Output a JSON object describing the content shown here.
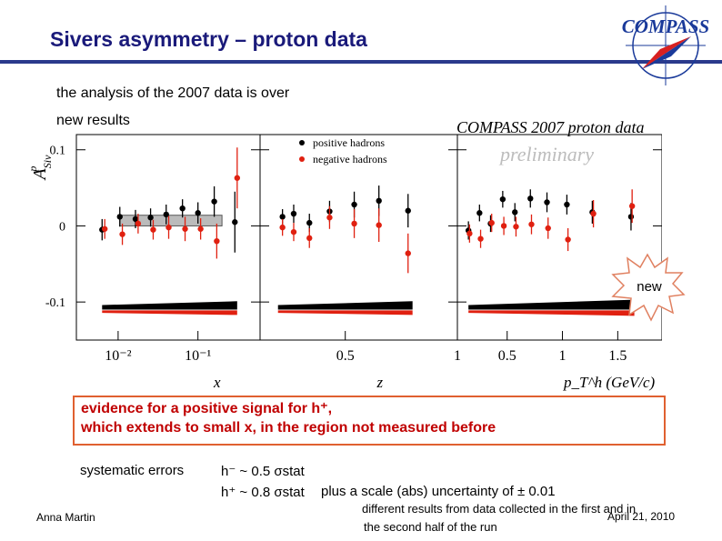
{
  "slide": {
    "title": "Sivers asymmetry – proton data",
    "line1": "the analysis of the 2007 data is over",
    "line2": "new results",
    "logo_text": "COMPASS",
    "evidence_line1": "evidence for a positive signal for h⁺,",
    "evidence_line2": "which extends to small x, in the region not measured before",
    "sys_label": "systematic errors",
    "sys_hminus": "h⁻ ~ 0.5 σstat",
    "sys_hplus": "h⁺ ~ 0.8 σstat",
    "sys_scale": "plus a scale (abs) uncertainty of ± 0.01",
    "note_line1": "different results from data collected in the first and in",
    "note_line2": "the second half of the run",
    "author": "Anna Martin",
    "date": "April 21, 2010",
    "badge": "new",
    "colors": {
      "title": "#1a1a7a",
      "rule": "#2a3a8c",
      "positive": "#000000",
      "negative": "#e02010",
      "evidence": "#c00000"
    }
  },
  "chart_data": {
    "type": "scatter",
    "title": "COMPASS 2007 proton data",
    "watermark": "preliminary",
    "ylabel": "A^p_Siv",
    "ylim": [
      -0.15,
      0.12
    ],
    "yticks": [
      {
        "v": 0.1,
        "label": "0.1"
      },
      {
        "v": 0,
        "label": "0"
      },
      {
        "v": -0.1,
        "label": "-0.1"
      }
    ],
    "legend": [
      "positive hadrons",
      "negative hadrons"
    ],
    "panels": [
      {
        "xlabel": "x",
        "scale": "log",
        "xlim": [
          0.003,
          0.6
        ],
        "xticks": [
          {
            "v": 0.01,
            "label": "10⁻²"
          },
          {
            "v": 0.1,
            "label": "10⁻¹"
          }
        ],
        "positive": [
          {
            "x": 0.0063,
            "y": -0.005,
            "e": 0.014
          },
          {
            "x": 0.0105,
            "y": 0.012,
            "e": 0.013
          },
          {
            "x": 0.0165,
            "y": 0.009,
            "e": 0.012
          },
          {
            "x": 0.0255,
            "y": 0.011,
            "e": 0.012
          },
          {
            "x": 0.04,
            "y": 0.015,
            "e": 0.013
          },
          {
            "x": 0.064,
            "y": 0.023,
            "e": 0.012
          },
          {
            "x": 0.1,
            "y": 0.017,
            "e": 0.014
          },
          {
            "x": 0.16,
            "y": 0.032,
            "e": 0.02
          },
          {
            "x": 0.29,
            "y": 0.005,
            "e": 0.04
          }
        ],
        "negative": [
          {
            "x": 0.0068,
            "y": -0.004,
            "e": 0.013
          },
          {
            "x": 0.0113,
            "y": -0.011,
            "e": 0.014
          },
          {
            "x": 0.0178,
            "y": 0.003,
            "e": 0.013
          },
          {
            "x": 0.0275,
            "y": -0.005,
            "e": 0.013
          },
          {
            "x": 0.043,
            "y": -0.002,
            "e": 0.015
          },
          {
            "x": 0.069,
            "y": -0.004,
            "e": 0.016
          },
          {
            "x": 0.108,
            "y": -0.004,
            "e": 0.014
          },
          {
            "x": 0.172,
            "y": -0.02,
            "e": 0.023
          },
          {
            "x": 0.31,
            "y": 0.063,
            "e": 0.04
          }
        ],
        "sys_band": {
          "from": 0.0063,
          "to": 0.31,
          "start": 0.006,
          "end": 0.011
        },
        "shade": {
          "from": 0.0105,
          "to": 0.2,
          "lo": 0.0,
          "hi": 0.014
        }
      },
      {
        "xlabel": "z",
        "scale": "linear",
        "xlim": [
          0.12,
          1.0
        ],
        "xticks": [
          {
            "v": 0.5,
            "label": "0.5"
          },
          {
            "v": 1,
            "label": "1"
          }
        ],
        "positive": [
          {
            "x": 0.22,
            "y": 0.012,
            "e": 0.01
          },
          {
            "x": 0.27,
            "y": 0.016,
            "e": 0.012
          },
          {
            "x": 0.34,
            "y": 0.004,
            "e": 0.012
          },
          {
            "x": 0.43,
            "y": 0.019,
            "e": 0.014
          },
          {
            "x": 0.54,
            "y": 0.028,
            "e": 0.017
          },
          {
            "x": 0.65,
            "y": 0.033,
            "e": 0.02
          },
          {
            "x": 0.78,
            "y": 0.02,
            "e": 0.022
          }
        ],
        "negative": [
          {
            "x": 0.22,
            "y": -0.002,
            "e": 0.011
          },
          {
            "x": 0.27,
            "y": -0.008,
            "e": 0.012
          },
          {
            "x": 0.34,
            "y": -0.016,
            "e": 0.013
          },
          {
            "x": 0.43,
            "y": 0.011,
            "e": 0.015
          },
          {
            "x": 0.54,
            "y": 0.003,
            "e": 0.019
          },
          {
            "x": 0.65,
            "y": 0.001,
            "e": 0.022
          },
          {
            "x": 0.78,
            "y": -0.036,
            "e": 0.026
          }
        ],
        "sys_band": {
          "from": 0.2,
          "to": 0.8,
          "start": 0.006,
          "end": 0.011
        }
      },
      {
        "xlabel": "p_T^h (GeV/c)",
        "scale": "linear",
        "xlim": [
          0.05,
          1.9
        ],
        "xticks": [
          {
            "v": 0.5,
            "label": "0.5"
          },
          {
            "v": 1,
            "label": "1"
          },
          {
            "v": 1.5,
            "label": "1.5"
          }
        ],
        "positive": [
          {
            "x": 0.15,
            "y": -0.006,
            "e": 0.012
          },
          {
            "x": 0.25,
            "y": 0.017,
            "e": 0.011
          },
          {
            "x": 0.35,
            "y": 0.003,
            "e": 0.011
          },
          {
            "x": 0.46,
            "y": 0.035,
            "e": 0.011
          },
          {
            "x": 0.57,
            "y": 0.018,
            "e": 0.012
          },
          {
            "x": 0.71,
            "y": 0.036,
            "e": 0.012
          },
          {
            "x": 0.86,
            "y": 0.031,
            "e": 0.013
          },
          {
            "x": 1.04,
            "y": 0.028,
            "e": 0.013
          },
          {
            "x": 1.27,
            "y": 0.018,
            "e": 0.015
          },
          {
            "x": 1.62,
            "y": 0.012,
            "e": 0.018
          }
        ],
        "negative": [
          {
            "x": 0.16,
            "y": -0.01,
            "e": 0.012
          },
          {
            "x": 0.26,
            "y": -0.017,
            "e": 0.012
          },
          {
            "x": 0.36,
            "y": 0.004,
            "e": 0.012
          },
          {
            "x": 0.47,
            "y": 0.0,
            "e": 0.012
          },
          {
            "x": 0.58,
            "y": -0.001,
            "e": 0.013
          },
          {
            "x": 0.72,
            "y": 0.002,
            "e": 0.013
          },
          {
            "x": 0.87,
            "y": -0.003,
            "e": 0.014
          },
          {
            "x": 1.05,
            "y": -0.018,
            "e": 0.015
          },
          {
            "x": 1.28,
            "y": 0.016,
            "e": 0.018
          },
          {
            "x": 1.63,
            "y": 0.026,
            "e": 0.022
          }
        ],
        "sys_band": {
          "from": 0.15,
          "to": 1.65,
          "start": 0.006,
          "end": 0.013
        }
      }
    ]
  }
}
